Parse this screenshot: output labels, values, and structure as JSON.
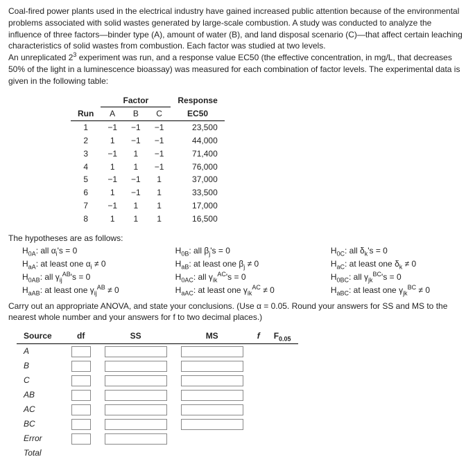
{
  "intro": {
    "p1": "Coal-fired power plants used in the electrical industry have gained increased public attention because of the environmental problems associated with solid wastes generated by large-scale combustion. A study was conducted to analyze the influence of three factors—binder type (A), amount of water (B), and land disposal scenario (C)—that affect certain leaching characteristics of solid wastes from combustion. Each factor was studied at two levels.",
    "p2a": "An unreplicated 2",
    "p2sup": "3",
    "p2b": " experiment was run, and a response value EC50 (the effective concentration, in mg/L, that decreases 50% of the light in a luminescence bioassay) was measured for each combination of factor levels. The experimental data is given in the following table:"
  },
  "dataTable": {
    "headers": {
      "run": "Run",
      "factor": "Factor",
      "a": "A",
      "b": "B",
      "c": "C",
      "response": "Response",
      "ec50": "EC50"
    },
    "rows": [
      {
        "run": "1",
        "a": "−1",
        "b": "−1",
        "c": "−1",
        "ec50": "23,500"
      },
      {
        "run": "2",
        "a": "1",
        "b": "−1",
        "c": "−1",
        "ec50": "44,000"
      },
      {
        "run": "3",
        "a": "−1",
        "b": "1",
        "c": "−1",
        "ec50": "71,400"
      },
      {
        "run": "4",
        "a": "1",
        "b": "1",
        "c": "−1",
        "ec50": "76,000"
      },
      {
        "run": "5",
        "a": "−1",
        "b": "−1",
        "c": "1",
        "ec50": "37,000"
      },
      {
        "run": "6",
        "a": "1",
        "b": "−1",
        "c": "1",
        "ec50": "33,500"
      },
      {
        "run": "7",
        "a": "−1",
        "b": "1",
        "c": "1",
        "ec50": "17,000"
      },
      {
        "run": "8",
        "a": "1",
        "b": "1",
        "c": "1",
        "ec50": "16,500"
      }
    ]
  },
  "hypotheses": {
    "title": "The hypotheses are as follows:",
    "rows": [
      {
        "c1": "H<sub>0A</sub>: all α<sub>i</sub>'s = 0",
        "c2": "H<sub>0B</sub>: all β<sub>j</sub>'s = 0",
        "c3": "H<sub>0C</sub>: all δ<sub>k</sub>'s = 0"
      },
      {
        "c1": "H<sub>aA</sub>: at least one α<sub>i</sub> ≠ 0",
        "c2": "H<sub>aB</sub>: at least one β<sub>j</sub> ≠ 0",
        "c3": "H<sub>aC</sub>: at least one δ<sub>k</sub> ≠ 0"
      },
      {
        "c1": "H<sub>0AB</sub>: all γ<sub>ij</sub><sup>AB</sup>'s = 0",
        "c2": "H<sub>0AC</sub>: all γ<sub>ik</sub><sup>AC</sup>'s = 0",
        "c3": "H<sub>0BC</sub>: all γ<sub>jk</sub><sup>BC</sup>'s = 0"
      },
      {
        "c1": "H<sub>aAB</sub>: at least one γ<sub>ij</sub><sup>AB</sup> ≠ 0",
        "c2": "H<sub>aAC</sub>: at least one γ<sub>ik</sub><sup>AC</sup> ≠ 0",
        "c3": "H<sub>aBC</sub>: at least one γ<sub>jk</sub><sup>BC</sup> ≠ 0"
      }
    ]
  },
  "instructions": "Carry out an appropriate ANOVA, and state your conclusions. (Use α = 0.05. Round your answers for SS and MS to the nearest whole number and your answers for f to two decimal places.)",
  "anova": {
    "headers": {
      "source": "Source",
      "df": "df",
      "ss": "SS",
      "ms": "MS",
      "f": "f",
      "fcrit": "F<sub>0.05</sub>"
    },
    "rows": [
      {
        "src": "A",
        "showF": true
      },
      {
        "src": "B",
        "showF": true
      },
      {
        "src": "C",
        "showF": true
      },
      {
        "src": "AB",
        "showF": true
      },
      {
        "src": "AC",
        "showF": true
      },
      {
        "src": "BC",
        "showF": true
      },
      {
        "src": "Error",
        "showF": false
      },
      {
        "src": "Total",
        "showF": false
      }
    ]
  },
  "style": {
    "dfInputWidth": 28,
    "wideInputWidth": 90,
    "borderColor": "#888",
    "textColor": "#222",
    "fontSize": 12
  }
}
